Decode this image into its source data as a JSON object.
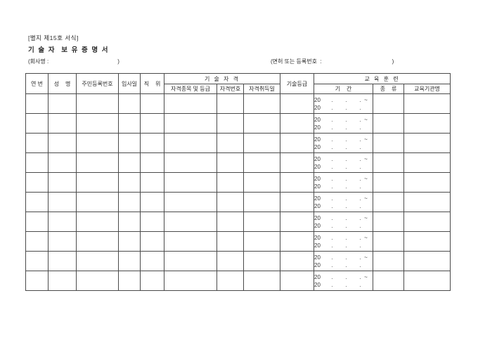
{
  "page": {
    "form_label": "[별지 제15호 서식]",
    "title": "기 술 자  보 유 증 명 서",
    "company": {
      "open": "(회사명 :",
      "close": ")"
    },
    "license": {
      "open": "(면허 또는 등록번호  :",
      "close": ")"
    }
  },
  "table": {
    "headers": {
      "no": "연 번",
      "name": "성    명",
      "rrn": "주민등록번호",
      "hire_date": "입사일",
      "position": "직    위",
      "qualification_group": "기 술 자 격",
      "qual_type": "자격종목 및 등급",
      "qual_no": "자격번호",
      "qual_date": "자격취득일",
      "tech_grade": "기술등급",
      "training_group": "교 육 훈 련",
      "period": "기    간",
      "kind": "종    류",
      "institution": "교육기관명"
    },
    "rows": [
      {
        "period_start": "20       .        .        .  ~",
        "period_end": "20       .        .        ."
      },
      {
        "period_start": "20       .        .        .  ~",
        "period_end": "20       .        .        ."
      },
      {
        "period_start": "20       .        .        .  ~",
        "period_end": "20       .        .        ."
      },
      {
        "period_start": "20       .        .        .  ~",
        "period_end": "20       .        .        ."
      },
      {
        "period_start": "20       .        .        .  ~",
        "period_end": "20       .        .        ."
      },
      {
        "period_start": "20       .        .        .  ~",
        "period_end": "20       .        .        ."
      },
      {
        "period_start": "20       .        .        .  ~",
        "period_end": "20       .        .        ."
      },
      {
        "period_start": "20       .        .        .  ~",
        "period_end": "20       .        .        ."
      },
      {
        "period_start": "20       .        .        .  ~",
        "period_end": "20       .        .        ."
      },
      {
        "period_start": "20       .        .        .  ~",
        "period_end": "20       .        .        ."
      }
    ]
  },
  "colors": {
    "background": "#ffffff",
    "border": "#4a4a4a",
    "text": "#2b2b2b"
  }
}
